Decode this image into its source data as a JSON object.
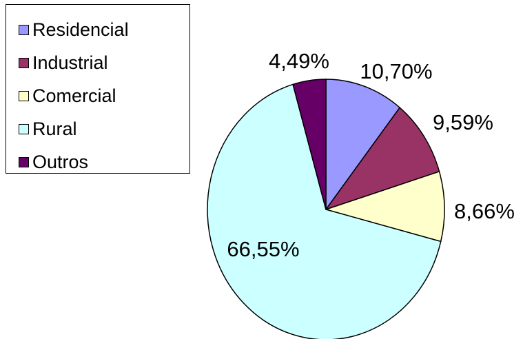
{
  "chart_data": {
    "type": "pie",
    "title": "",
    "legend_position": "top-left",
    "categories": [
      "Residencial",
      "Industrial",
      "Comercial",
      "Rural",
      "Outros"
    ],
    "values": [
      10.7,
      9.59,
      8.66,
      66.55,
      4.49
    ],
    "labels": [
      "10,70%",
      "9,59%",
      "8,66%",
      "66,55%",
      "4,49%"
    ],
    "colors": [
      "#9999FF",
      "#993366",
      "#FFFFCC",
      "#CCFFFF",
      "#660066"
    ],
    "start_angle_deg": 0,
    "direction": "clockwise"
  }
}
